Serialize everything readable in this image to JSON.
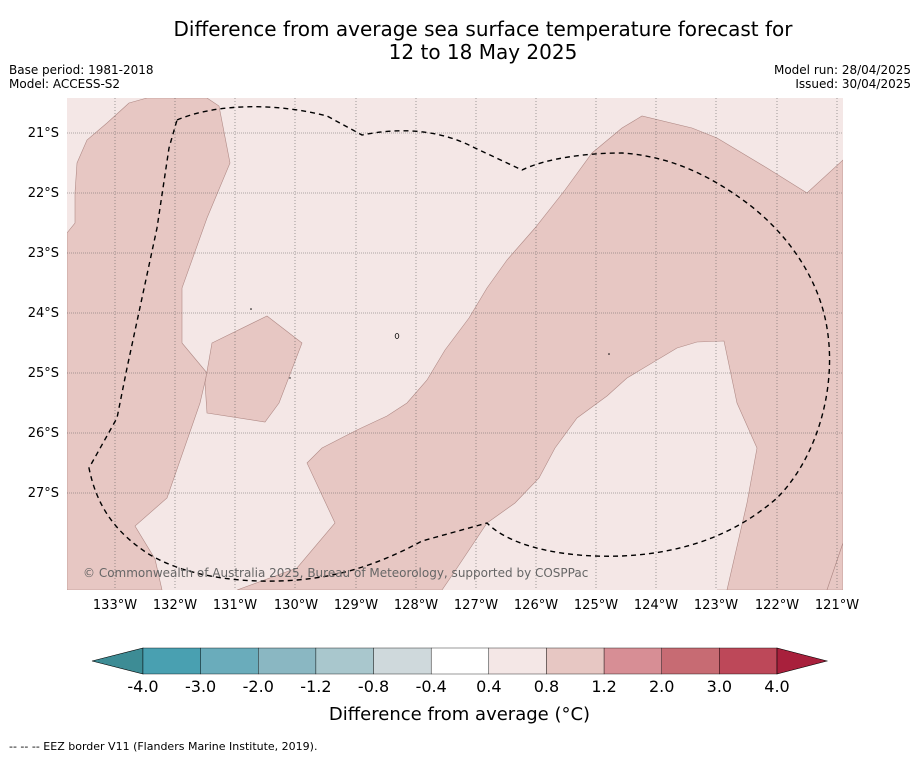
{
  "title": {
    "line1": "Difference from average sea surface temperature forecast for",
    "line2": "12 to 18 May 2025"
  },
  "meta_left": {
    "base_period": "Base period: 1981-2018",
    "model": "Model: ACCESS-S2"
  },
  "meta_right": {
    "model_run": "Model run: 28/04/2025",
    "issued": "Issued: 30/04/2025"
  },
  "map": {
    "lat_labels": [
      "21°S",
      "22°S",
      "23°S",
      "24°S",
      "25°S",
      "26°S",
      "27°S"
    ],
    "lon_labels": [
      "133°W",
      "132°W",
      "131°W",
      "130°W",
      "129°W",
      "128°W",
      "127°W",
      "126°W",
      "125°W",
      "124°W",
      "123°W",
      "122°W",
      "121°W"
    ],
    "colors": {
      "band_0_4_to_0_8": "#f4e7e6",
      "band_0_8_to_1_2": "#e7c7c3",
      "eez_line": "#000000",
      "gridline": "#555555"
    },
    "copyright": "© Commonwealth of Australia 2025, Bureau of Meteorology, supported by COSPPac"
  },
  "colorbar": {
    "ticks": [
      "-4.0",
      "-3.0",
      "-2.0",
      "-1.2",
      "-0.8",
      "-0.4",
      "0.4",
      "0.8",
      "1.2",
      "2.0",
      "3.0",
      "4.0"
    ],
    "colors": [
      "#3d8c95",
      "#49a0b1",
      "#6aacbb",
      "#8ab7c2",
      "#a9c7cd",
      "#cfd9dc",
      "#ffffff",
      "#f4e7e6",
      "#e7c7c3",
      "#d78e95",
      "#c76b73",
      "#bd4859",
      "#a8203c"
    ],
    "label": "Difference from average (°C)"
  },
  "footnote": "--  --  -- EEZ border V11 (Flanders Marine Institute, 2019)."
}
